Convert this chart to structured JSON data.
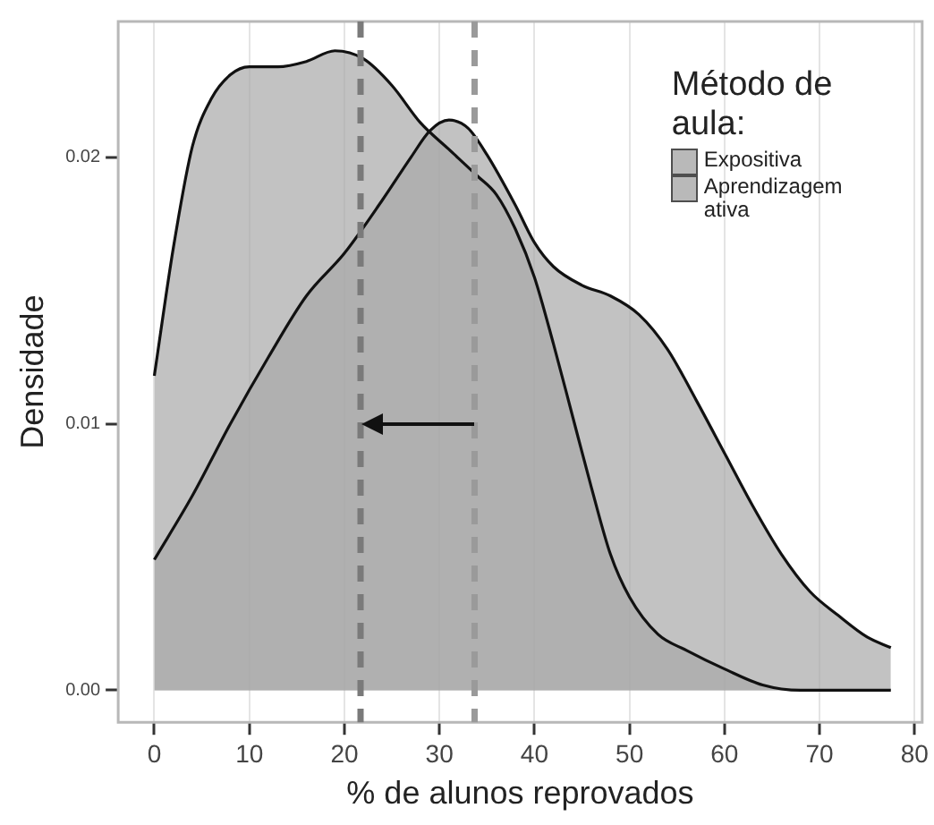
{
  "chart_data": {
    "type": "area",
    "xlabel": "% de alunos reprovados",
    "ylabel": "Densidade",
    "legend_title": "Método de aula:",
    "legend": "top right",
    "grid": "x",
    "xlim": [
      -3.8,
      80.8
    ],
    "xticks": [
      0,
      10,
      20,
      30,
      40,
      50,
      60,
      70,
      80
    ],
    "ylim": [
      -0.0012,
      0.0251
    ],
    "yticks": [
      {
        "value": 0,
        "label": "0.00"
      },
      {
        "value": 0.01,
        "label": "0.01"
      },
      {
        "value": 0.02,
        "label": "0.02"
      }
    ],
    "series": [
      {
        "name": "Expositiva",
        "color": "#a8a8a8",
        "x": [
          0,
          4,
          8,
          12,
          16,
          20,
          24,
          27,
          29,
          31,
          33,
          35,
          38,
          40,
          42,
          45,
          48,
          51,
          54,
          57,
          60,
          63,
          66,
          69,
          72,
          75,
          77.5
        ],
        "values": [
          0.0049,
          0.0073,
          0.01,
          0.0125,
          0.0148,
          0.0164,
          0.0184,
          0.02,
          0.021,
          0.0214,
          0.0211,
          0.0201,
          0.0182,
          0.0168,
          0.0159,
          0.0152,
          0.0148,
          0.0141,
          0.0128,
          0.0109,
          0.0089,
          0.0069,
          0.0051,
          0.0037,
          0.0028,
          0.002,
          0.0016
        ]
      },
      {
        "name": "Aprendizagem ativa",
        "color": "#a8a8a8",
        "x": [
          0,
          2,
          4,
          6,
          8,
          10,
          13,
          16,
          19,
          22,
          25,
          28,
          31,
          34,
          36,
          38,
          40,
          42,
          44,
          46,
          48,
          50,
          53,
          56,
          60,
          64,
          68,
          72,
          77.5
        ],
        "values": [
          0.0118,
          0.0166,
          0.0204,
          0.0222,
          0.0231,
          0.0234,
          0.0234,
          0.0236,
          0.024,
          0.0237,
          0.0227,
          0.0213,
          0.0203,
          0.0193,
          0.0186,
          0.0173,
          0.0155,
          0.013,
          0.0103,
          0.0076,
          0.0051,
          0.0035,
          0.0021,
          0.0015,
          0.0008,
          0.0002,
          0,
          0,
          0
        ]
      }
    ],
    "ref_lines": [
      {
        "axis": "x",
        "value": 21.7,
        "color": "#7a7a7a",
        "line_style": "dashed"
      },
      {
        "axis": "x",
        "value": 33.7,
        "color": "#9a9a9a",
        "line_style": "dashed"
      }
    ]
  }
}
